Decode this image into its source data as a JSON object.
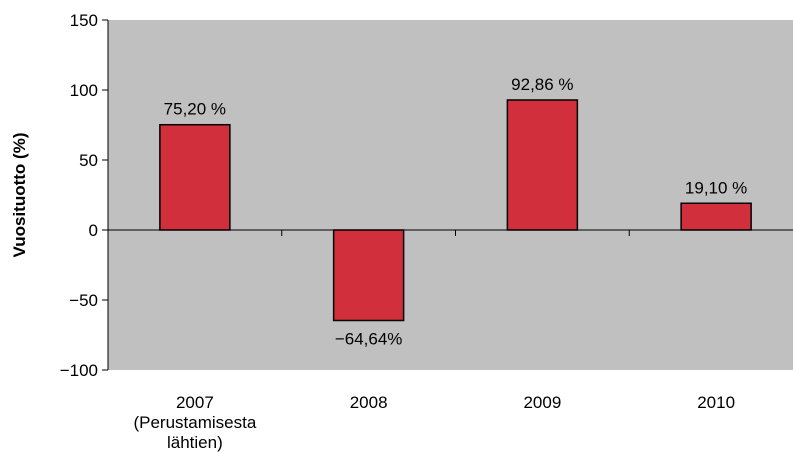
{
  "chart_data": {
    "type": "bar",
    "ylabel": "Vuosituotto (%)",
    "ylim": [
      -100,
      150
    ],
    "yticks": [
      150,
      100,
      50,
      0,
      -50,
      -100
    ],
    "ytick_labels": [
      "150",
      "100",
      "50",
      "0",
      "−50",
      "−100"
    ],
    "grid": false,
    "categories": [
      [
        "2007",
        "(Perustamisesta",
        "lähtien)"
      ],
      [
        "2008"
      ],
      [
        "2009"
      ],
      [
        "2010"
      ]
    ],
    "values": [
      75.2,
      -64.64,
      92.86,
      19.1
    ],
    "data_labels": [
      "75,20 %",
      "−64,64%",
      "92,86 %",
      "19,10 %"
    ],
    "colors": {
      "plot_background": "#c0c0c0",
      "bar_fill": "#d22f3c",
      "bar_stroke": "#000000"
    }
  }
}
